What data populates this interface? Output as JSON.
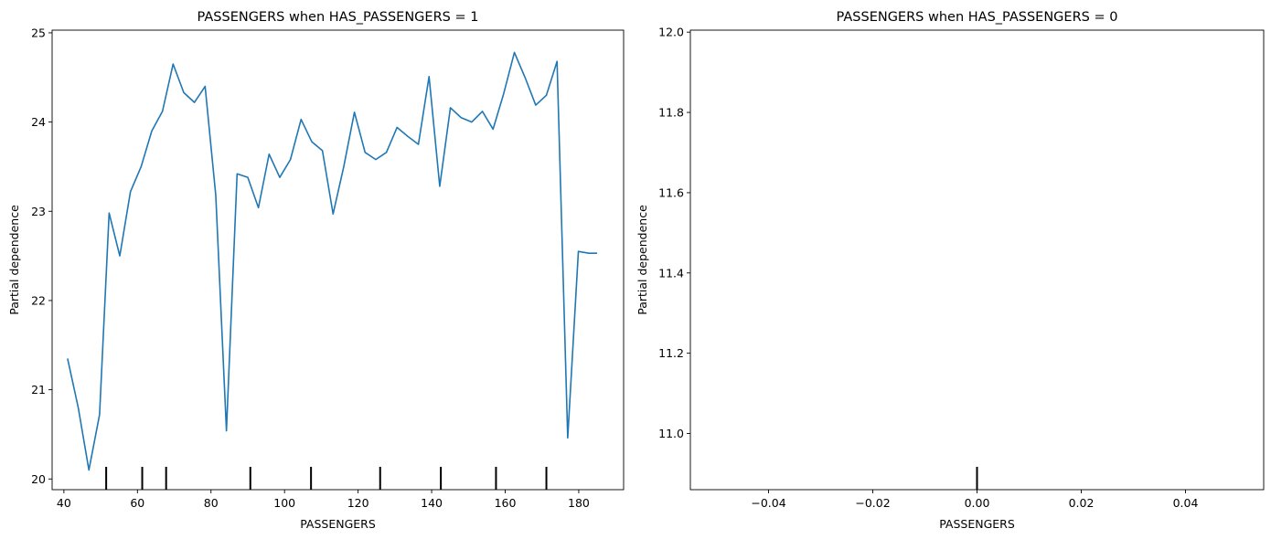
{
  "chart_data": [
    {
      "type": "line",
      "title": "PASSENGERS when HAS_PASSENGERS = 1",
      "xlabel": "PASSENGERS",
      "ylabel": "Partial dependence",
      "xlim": [
        36.8,
        192.2
      ],
      "ylim": [
        19.88,
        25.03
      ],
      "xticks": [
        40,
        60,
        80,
        100,
        120,
        140,
        160,
        180
      ],
      "yticks": [
        20,
        21,
        22,
        23,
        24,
        25
      ],
      "grid": false,
      "line_color": "#1f77b4",
      "x": [
        41.0,
        43.9,
        46.8,
        49.7,
        52.3,
        55.2,
        58.1,
        61.0,
        63.9,
        66.8,
        69.7,
        72.6,
        75.5,
        78.4,
        81.3,
        84.2,
        87.1,
        90.0,
        92.9,
        95.8,
        98.7,
        101.6,
        104.5,
        107.4,
        110.3,
        113.2,
        116.1,
        119.0,
        121.9,
        124.8,
        127.7,
        130.6,
        133.5,
        136.4,
        139.3,
        142.2,
        145.1,
        148.0,
        150.9,
        153.8,
        156.7,
        159.6,
        162.5,
        165.4,
        168.3,
        171.2,
        174.1,
        177.0,
        179.9,
        182.8,
        185.0
      ],
      "y": [
        21.35,
        20.8,
        20.1,
        20.72,
        22.98,
        22.5,
        23.22,
        23.5,
        23.9,
        24.12,
        24.65,
        24.33,
        24.22,
        24.4,
        23.18,
        20.54,
        23.42,
        23.38,
        23.04,
        23.64,
        23.38,
        23.58,
        24.03,
        23.78,
        23.68,
        22.97,
        23.5,
        24.11,
        23.66,
        23.58,
        23.66,
        23.94,
        23.84,
        23.75,
        24.51,
        23.28,
        24.16,
        24.05,
        24.0,
        24.12,
        23.92,
        24.32,
        24.78,
        24.5,
        24.19,
        24.3,
        24.68,
        20.46,
        22.55,
        22.53,
        22.53
      ],
      "deciles": [
        51.5,
        61.3,
        67.8,
        90.7,
        107.2,
        126.0,
        142.5,
        157.5,
        171.2
      ]
    },
    {
      "type": "line",
      "title": "PASSENGERS when HAS_PASSENGERS = 0",
      "xlabel": "PASSENGERS",
      "ylabel": "Partial dependence",
      "xlim": [
        -0.055,
        0.055
      ],
      "ylim": [
        10.86,
        12.005
      ],
      "xticks": [
        -0.04,
        -0.02,
        0.0,
        0.02,
        0.04
      ],
      "yticks": [
        11.0,
        11.2,
        11.4,
        11.6,
        11.8,
        12.0
      ],
      "grid": false,
      "x": [],
      "y": [],
      "deciles": [
        0.0
      ]
    }
  ]
}
